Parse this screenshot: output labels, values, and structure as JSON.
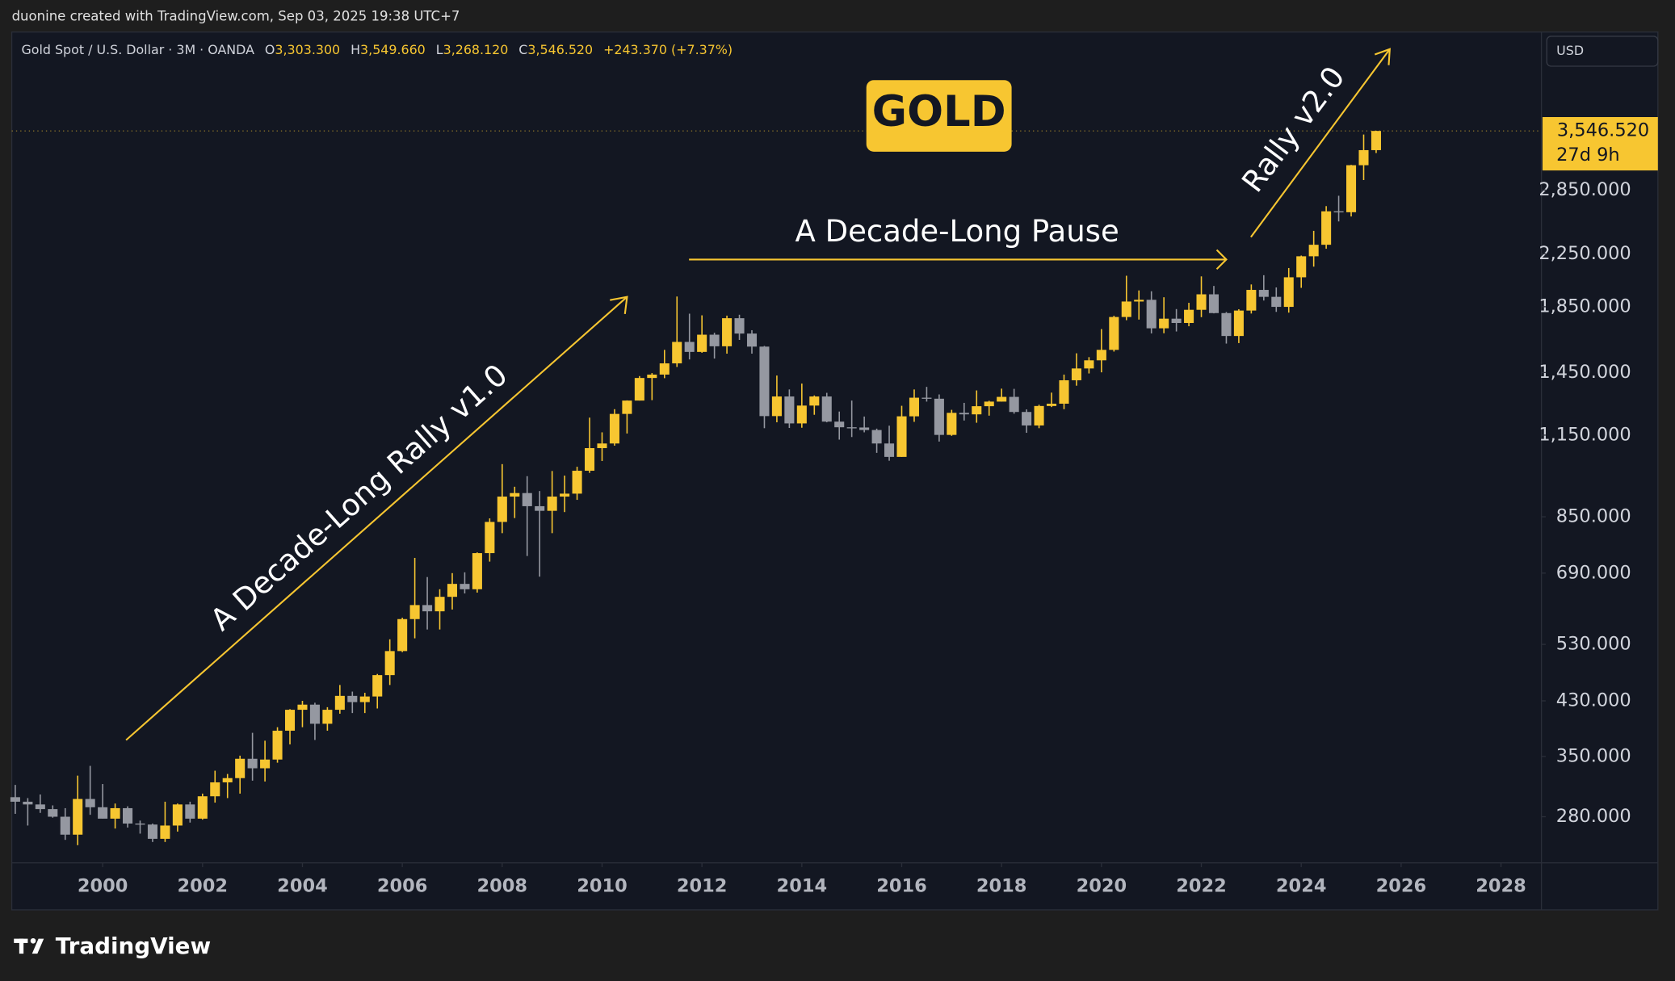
{
  "header": {
    "attribution": "duonine created with TradingView.com, Sep 03, 2025 19:38 UTC+7"
  },
  "footer": {
    "brand": "TradingView"
  },
  "chart_data": {
    "type": "candlestick",
    "title": "GOLD",
    "legend": {
      "symbol": "Gold Spot / U.S. Dollar · 3M · OANDA",
      "open_label": "O",
      "open": "3,303.300",
      "high_label": "H",
      "high": "3,549.660",
      "low_label": "L",
      "low": "3,268.120",
      "close_label": "C",
      "close": "3,546.520",
      "change": "+243.370 (+7.37%)"
    },
    "currency": "USD",
    "annotations": {
      "rally_v1": "A Decade-Long Rally v1.0",
      "pause": "A Decade-Long Pause",
      "rally_v2": "Rally v2.0"
    },
    "last_price": {
      "value": 3546.52,
      "label": "3,546.520"
    },
    "countdown": "27d 9h",
    "up_color": "#f7c631",
    "down_color": "#9598a1",
    "y_scale": "log",
    "grid": false,
    "xlim": [
      1998.18,
      2028.81
    ],
    "xticks": [
      2000,
      2002,
      2004,
      2006,
      2008,
      2010,
      2012,
      2014,
      2016,
      2018,
      2020,
      2022,
      2024,
      2026,
      2028
    ],
    "ylim": [
      236,
      5115
    ],
    "yticks": [
      {
        "value": 280,
        "label": "280.000"
      },
      {
        "value": 350,
        "label": "350.000"
      },
      {
        "value": 430,
        "label": "430.000"
      },
      {
        "value": 530,
        "label": "530.000"
      },
      {
        "value": 690,
        "label": "690.000"
      },
      {
        "value": 850,
        "label": "850.000"
      },
      {
        "value": 1150,
        "label": "1,150.000"
      },
      {
        "value": 1450,
        "label": "1,450.000"
      },
      {
        "value": 1850,
        "label": "1,850.000"
      },
      {
        "value": 2250,
        "label": "2,250.000"
      },
      {
        "value": 2850,
        "label": "2,850.000"
      }
    ],
    "x": [
      1998.25,
      1998.5,
      1998.75,
      1999,
      1999.25,
      1999.5,
      1999.75,
      2000,
      2000.25,
      2000.5,
      2000.75,
      2001,
      2001.25,
      2001.5,
      2001.75,
      2002,
      2002.25,
      2002.5,
      2002.75,
      2003,
      2003.25,
      2003.5,
      2003.75,
      2004,
      2004.25,
      2004.5,
      2004.75,
      2005,
      2005.25,
      2005.5,
      2005.75,
      2006,
      2006.25,
      2006.5,
      2006.75,
      2007,
      2007.25,
      2007.5,
      2007.75,
      2008,
      2008.25,
      2008.5,
      2008.75,
      2009,
      2009.25,
      2009.5,
      2009.75,
      2010,
      2010.25,
      2010.5,
      2010.75,
      2011,
      2011.25,
      2011.5,
      2011.75,
      2012,
      2012.25,
      2012.5,
      2012.75,
      2013,
      2013.25,
      2013.5,
      2013.75,
      2014,
      2014.25,
      2014.5,
      2014.75,
      2015,
      2015.25,
      2015.5,
      2015.75,
      2016,
      2016.25,
      2016.5,
      2016.75,
      2017,
      2017.25,
      2017.5,
      2017.75,
      2018,
      2018.25,
      2018.5,
      2018.75,
      2019,
      2019.25,
      2019.5,
      2019.75,
      2020,
      2020.25,
      2020.5,
      2020.75,
      2021,
      2021.25,
      2021.5,
      2021.75,
      2022,
      2022.25,
      2022.5,
      2022.75,
      2023,
      2023.25,
      2023.5,
      2023.75,
      2024,
      2024.25,
      2024.5,
      2024.75,
      2025,
      2025.25,
      2025.5
    ],
    "open": [
      301,
      296,
      293,
      288,
      280,
      262,
      299,
      290,
      278,
      289,
      273,
      272,
      258,
      271,
      293,
      278,
      302,
      318,
      323,
      347,
      335,
      346,
      385,
      416,
      424,
      395,
      416,
      438,
      428,
      437,
      473,
      517,
      582,
      613,
      599,
      632,
      663,
      650,
      743,
      834,
      916,
      928,
      884,
      869,
      916,
      926,
      1008,
      1096,
      1115,
      1244,
      1307,
      1421,
      1439,
      1500,
      1624,
      1565,
      1668,
      1598,
      1773,
      1675,
      1596,
      1234,
      1327,
      1201,
      1283,
      1327,
      1209,
      1184,
      1183,
      1172,
      1115,
      1061,
      1233,
      1321,
      1316,
      1151,
      1249,
      1242,
      1280,
      1302,
      1325,
      1253,
      1192,
      1281,
      1292,
      1409,
      1472,
      1517,
      1577,
      1781,
      1886,
      1898,
      1708,
      1770,
      1742,
      1829,
      1937,
      1807,
      1660,
      1824,
      1969,
      1919,
      1849,
      2063,
      2230,
      2327,
      2634,
      2625,
      3124,
      3303.3
    ],
    "high": [
      315,
      300,
      304,
      292,
      289,
      326,
      338,
      316,
      294,
      291,
      276,
      273,
      296,
      294,
      296,
      305,
      332,
      328,
      351,
      382,
      371,
      390,
      417,
      430,
      427,
      420,
      456,
      445,
      443,
      475,
      540,
      585,
      730,
      680,
      650,
      690,
      692,
      745,
      845,
      1033,
      950,
      988,
      935,
      1007,
      990,
      1023,
      1227,
      1162,
      1266,
      1308,
      1431,
      1447,
      1577,
      1921,
      1803,
      1792,
      1680,
      1790,
      1796,
      1696,
      1600,
      1434,
      1362,
      1392,
      1332,
      1345,
      1255,
      1307,
      1232,
      1178,
      1191,
      1282,
      1362,
      1375,
      1337,
      1263,
      1296,
      1357,
      1306,
      1366,
      1365,
      1265,
      1287,
      1346,
      1439,
      1557,
      1535,
      1703,
      1789,
      2075,
      1965,
      1959,
      1916,
      1834,
      1877,
      2070,
      1998,
      1814,
      1833,
      2009,
      2079,
      1987,
      2135,
      2236,
      2450,
      2685,
      2790,
      3128,
      3500,
      3549.66
    ],
    "low": [
      283,
      271,
      284,
      279,
      257,
      252,
      282,
      278,
      268,
      269,
      263,
      255,
      255,
      265,
      274,
      277,
      295,
      300,
      305,
      320,
      319,
      342,
      366,
      390,
      372,
      385,
      410,
      411,
      411,
      418,
      456,
      515,
      542,
      560,
      560,
      603,
      640,
      642,
      720,
      800,
      846,
      735,
      681,
      800,
      865,
      905,
      1000,
      1045,
      1106,
      1157,
      1307,
      1309,
      1420,
      1480,
      1522,
      1560,
      1527,
      1555,
      1636,
      1555,
      1180,
      1206,
      1181,
      1182,
      1240,
      1206,
      1131,
      1142,
      1162,
      1077,
      1046,
      1061,
      1208,
      1302,
      1123,
      1147,
      1214,
      1204,
      1236,
      1302,
      1245,
      1160,
      1180,
      1276,
      1266,
      1381,
      1445,
      1451,
      1567,
      1760,
      1764,
      1676,
      1677,
      1688,
      1721,
      1780,
      1805,
      1614,
      1617,
      1804,
      1893,
      1815,
      1810,
      1984,
      2146,
      2293,
      2537,
      2584,
      2957,
      3268.12
    ],
    "close": [
      296,
      293,
      288,
      280,
      262,
      299,
      290,
      278,
      289,
      273,
      272,
      258,
      271,
      293,
      278,
      302,
      318,
      323,
      347,
      335,
      346,
      385,
      416,
      424,
      395,
      416,
      438,
      428,
      437,
      473,
      517,
      582,
      613,
      599,
      632,
      663,
      650,
      743,
      834,
      916,
      928,
      884,
      869,
      916,
      926,
      1008,
      1096,
      1115,
      1244,
      1307,
      1421,
      1439,
      1500,
      1624,
      1565,
      1668,
      1598,
      1773,
      1675,
      1596,
      1234,
      1327,
      1201,
      1283,
      1327,
      1209,
      1184,
      1183,
      1172,
      1115,
      1061,
      1233,
      1321,
      1316,
      1151,
      1249,
      1242,
      1280,
      1302,
      1325,
      1253,
      1192,
      1281,
      1292,
      1409,
      1472,
      1517,
      1577,
      1781,
      1886,
      1898,
      1708,
      1770,
      1742,
      1829,
      1937,
      1807,
      1660,
      1824,
      1969,
      1919,
      1849,
      2063,
      2230,
      2327,
      2634,
      2625,
      3124,
      3303.3,
      3546.52
    ]
  }
}
